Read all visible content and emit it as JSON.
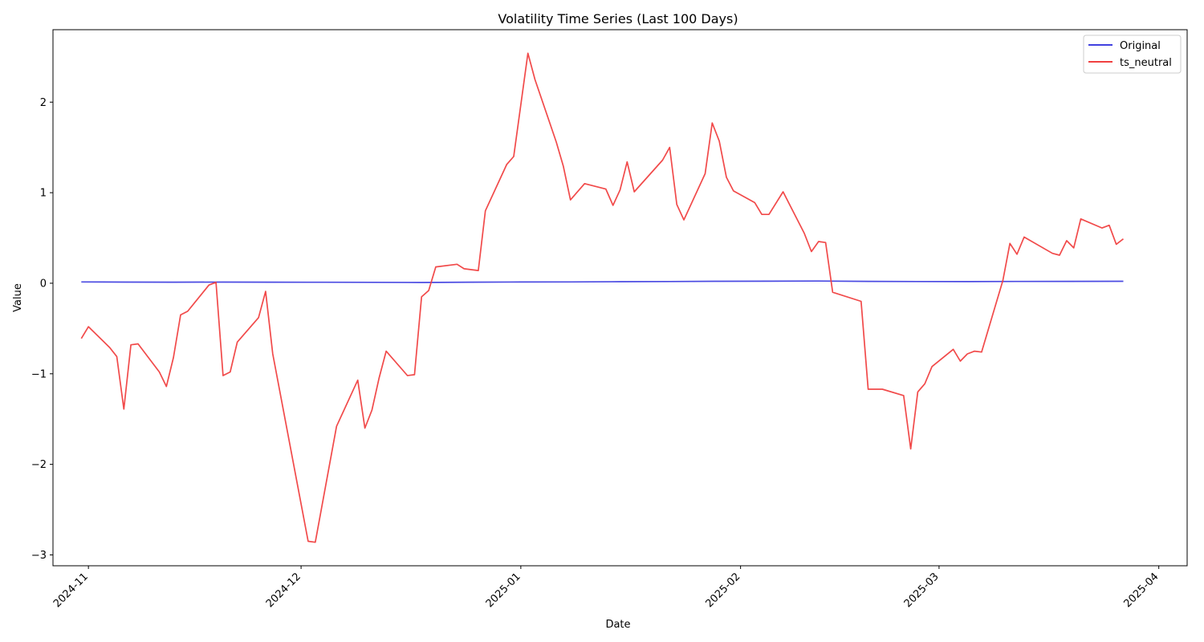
{
  "chart_data": {
    "type": "line",
    "title": "Volatility Time Series (Last 100 Days)",
    "xlabel": "Date",
    "ylabel": "Value",
    "xlim": [
      "2024-10-27",
      "2025-04-05"
    ],
    "ylim": [
      -3.12,
      2.8
    ],
    "x_ticks": [
      "2024-11-01",
      "2024-12-01",
      "2025-01-01",
      "2025-02-01",
      "2025-03-01",
      "2025-04-01"
    ],
    "x_tick_labels": [
      "2024-11",
      "2024-12",
      "2025-01",
      "2025-02",
      "2025-03",
      "2025-04"
    ],
    "y_ticks": [
      -3,
      -2,
      -1,
      0,
      1,
      2
    ],
    "y_tick_labels": [
      "−3",
      "−2",
      "−1",
      "0",
      "1",
      "2"
    ],
    "grid": false,
    "legend_position": "top-right",
    "series": [
      {
        "name": "Original",
        "color": "#4040e0",
        "points": [
          [
            "2024-10-31",
            0.015
          ],
          [
            "2024-11-06",
            0.013
          ],
          [
            "2024-11-13",
            0.012
          ],
          [
            "2024-11-20",
            0.013
          ],
          [
            "2024-11-27",
            0.012
          ],
          [
            "2024-12-04",
            0.011
          ],
          [
            "2024-12-11",
            0.01
          ],
          [
            "2024-12-18",
            0.008
          ],
          [
            "2024-12-25",
            0.012
          ],
          [
            "2025-01-01",
            0.014
          ],
          [
            "2025-01-08",
            0.015
          ],
          [
            "2025-01-15",
            0.017
          ],
          [
            "2025-01-22",
            0.019
          ],
          [
            "2025-01-29",
            0.022
          ],
          [
            "2025-02-05",
            0.023
          ],
          [
            "2025-02-12",
            0.024
          ],
          [
            "2025-02-19",
            0.021
          ],
          [
            "2025-02-26",
            0.019
          ],
          [
            "2025-03-05",
            0.018
          ],
          [
            "2025-03-12",
            0.02
          ],
          [
            "2025-03-19",
            0.021
          ],
          [
            "2025-03-27",
            0.022
          ]
        ]
      },
      {
        "name": "ts_neutral",
        "color": "#f04040",
        "points": [
          [
            "2024-10-31",
            -0.61
          ],
          [
            "2024-11-01",
            -0.48
          ],
          [
            "2024-11-04",
            -0.71
          ],
          [
            "2024-11-05",
            -0.81
          ],
          [
            "2024-11-06",
            -1.39
          ],
          [
            "2024-11-07",
            -0.68
          ],
          [
            "2024-11-08",
            -0.67
          ],
          [
            "2024-11-11",
            -0.98
          ],
          [
            "2024-11-12",
            -1.14
          ],
          [
            "2024-11-13",
            -0.82
          ],
          [
            "2024-11-14",
            -0.35
          ],
          [
            "2024-11-15",
            -0.31
          ],
          [
            "2024-11-18",
            -0.02
          ],
          [
            "2024-11-19",
            0.01
          ],
          [
            "2024-11-20",
            -1.02
          ],
          [
            "2024-11-21",
            -0.98
          ],
          [
            "2024-11-22",
            -0.65
          ],
          [
            "2024-11-25",
            -0.38
          ],
          [
            "2024-11-26",
            -0.09
          ],
          [
            "2024-11-27",
            -0.78
          ],
          [
            "2024-12-02",
            -2.85
          ],
          [
            "2024-12-03",
            -2.86
          ],
          [
            "2024-12-06",
            -1.58
          ],
          [
            "2024-12-09",
            -1.07
          ],
          [
            "2024-12-10",
            -1.6
          ],
          [
            "2024-12-11",
            -1.4
          ],
          [
            "2024-12-12",
            -1.05
          ],
          [
            "2024-12-13",
            -0.75
          ],
          [
            "2024-12-16",
            -1.02
          ],
          [
            "2024-12-17",
            -1.01
          ],
          [
            "2024-12-18",
            -0.15
          ],
          [
            "2024-12-19",
            -0.08
          ],
          [
            "2024-12-20",
            0.18
          ],
          [
            "2024-12-23",
            0.21
          ],
          [
            "2024-12-24",
            0.16
          ],
          [
            "2024-12-26",
            0.14
          ],
          [
            "2024-12-27",
            0.8
          ],
          [
            "2024-12-30",
            1.31
          ],
          [
            "2024-12-31",
            1.4
          ],
          [
            "2025-01-02",
            2.54
          ],
          [
            "2025-01-03",
            2.25
          ],
          [
            "2025-01-06",
            1.56
          ],
          [
            "2025-01-07",
            1.29
          ],
          [
            "2025-01-08",
            0.92
          ],
          [
            "2025-01-10",
            1.1
          ],
          [
            "2025-01-13",
            1.04
          ],
          [
            "2025-01-14",
            0.86
          ],
          [
            "2025-01-15",
            1.03
          ],
          [
            "2025-01-16",
            1.34
          ],
          [
            "2025-01-17",
            1.01
          ],
          [
            "2025-01-21",
            1.36
          ],
          [
            "2025-01-22",
            1.5
          ],
          [
            "2025-01-23",
            0.87
          ],
          [
            "2025-01-24",
            0.7
          ],
          [
            "2025-01-27",
            1.21
          ],
          [
            "2025-01-28",
            1.77
          ],
          [
            "2025-01-29",
            1.57
          ],
          [
            "2025-01-30",
            1.17
          ],
          [
            "2025-01-31",
            1.02
          ],
          [
            "2025-02-03",
            0.89
          ],
          [
            "2025-02-04",
            0.76
          ],
          [
            "2025-02-05",
            0.76
          ],
          [
            "2025-02-07",
            1.01
          ],
          [
            "2025-02-10",
            0.55
          ],
          [
            "2025-02-11",
            0.35
          ],
          [
            "2025-02-12",
            0.46
          ],
          [
            "2025-02-13",
            0.45
          ],
          [
            "2025-02-14",
            -0.1
          ],
          [
            "2025-02-18",
            -0.2
          ],
          [
            "2025-02-19",
            -1.17
          ],
          [
            "2025-02-21",
            -1.17
          ],
          [
            "2025-02-24",
            -1.24
          ],
          [
            "2025-02-25",
            -1.83
          ],
          [
            "2025-02-26",
            -1.2
          ],
          [
            "2025-02-27",
            -1.11
          ],
          [
            "2025-02-28",
            -0.92
          ],
          [
            "2025-03-03",
            -0.73
          ],
          [
            "2025-03-04",
            -0.86
          ],
          [
            "2025-03-05",
            -0.78
          ],
          [
            "2025-03-06",
            -0.75
          ],
          [
            "2025-03-07",
            -0.76
          ],
          [
            "2025-03-10",
            0.03
          ],
          [
            "2025-03-11",
            0.44
          ],
          [
            "2025-03-12",
            0.32
          ],
          [
            "2025-03-13",
            0.51
          ],
          [
            "2025-03-17",
            0.33
          ],
          [
            "2025-03-18",
            0.31
          ],
          [
            "2025-03-19",
            0.47
          ],
          [
            "2025-03-20",
            0.39
          ],
          [
            "2025-03-21",
            0.71
          ],
          [
            "2025-03-24",
            0.61
          ],
          [
            "2025-03-25",
            0.64
          ],
          [
            "2025-03-26",
            0.43
          ],
          [
            "2025-03-27",
            0.49
          ]
        ]
      }
    ]
  }
}
